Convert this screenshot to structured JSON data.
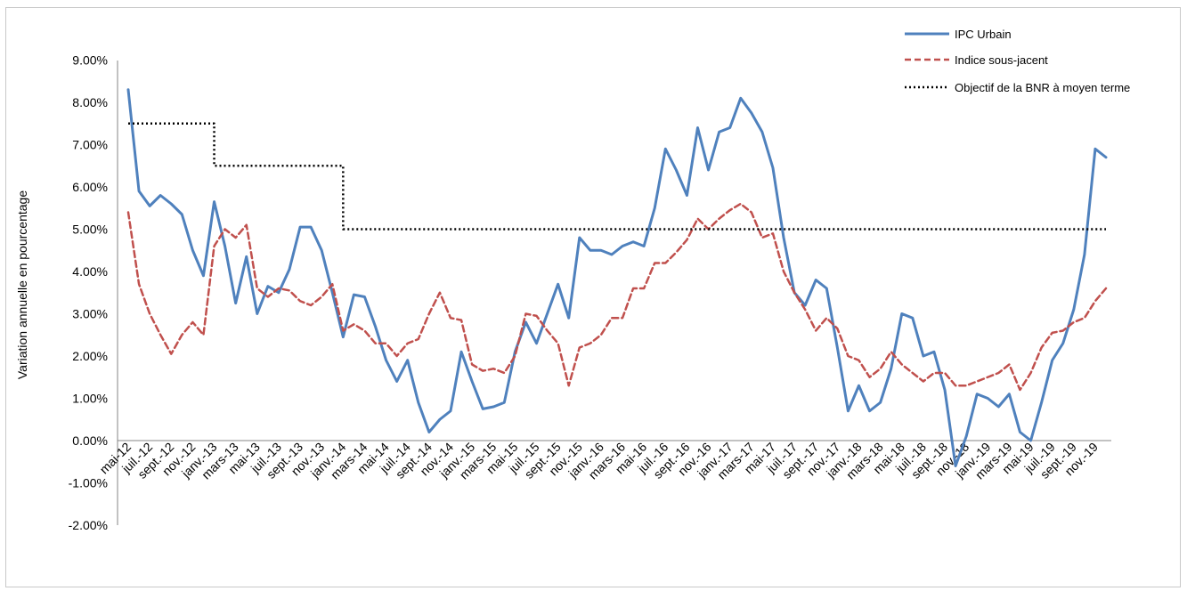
{
  "chart_data": {
    "type": "line",
    "title": "",
    "ylabel": "Variation annuelle en pourcentage",
    "xlabel": "",
    "ylim": [
      -2,
      9
    ],
    "y_ticks": [
      "-2.00%",
      "-1.00%",
      "0.00%",
      "1.00%",
      "2.00%",
      "3.00%",
      "4.00%",
      "5.00%",
      "6.00%",
      "7.00%",
      "8.00%",
      "9.00%"
    ],
    "x_tick_labels": [
      "mai-12",
      "juil.-12",
      "sept.-12",
      "nov.-12",
      "janv.-13",
      "mars-13",
      "mai-13",
      "juil.-13",
      "sept.-13",
      "nov.-13",
      "janv.-14",
      "mars-14",
      "mai-14",
      "juil.-14",
      "sept.-14",
      "nov.-14",
      "janv.-15",
      "mars-15",
      "mai-15",
      "juil.-15",
      "sept.-15",
      "nov.-15",
      "janv.-16",
      "mars-16",
      "mai-16",
      "juil.-16",
      "sept.-16",
      "nov.-16",
      "janv.-17",
      "mars-17",
      "mai-17",
      "juil.-17",
      "sept.-17",
      "nov.-17",
      "janv.-18",
      "mars-18",
      "mai-18",
      "juil.-18",
      "sept.-18",
      "nov.-18",
      "janv.-19",
      "mars-19",
      "mai-19",
      "juil.-19",
      "sept.-19",
      "nov.-19"
    ],
    "legend_position": "top-right",
    "series": [
      {
        "name": "IPC Urbain",
        "color": "#4f81bd",
        "style": "solid",
        "values": [
          8.3,
          5.9,
          5.55,
          5.8,
          5.6,
          5.35,
          4.5,
          3.9,
          5.65,
          4.6,
          3.25,
          4.35,
          3.0,
          3.65,
          3.5,
          4.05,
          5.05,
          5.05,
          4.5,
          3.5,
          2.45,
          3.45,
          3.4,
          2.7,
          1.9,
          1.4,
          1.9,
          0.9,
          0.2,
          0.5,
          0.7,
          2.1,
          1.4,
          0.75,
          0.8,
          0.9,
          2.1,
          2.8,
          2.3,
          3.0,
          3.7,
          2.9,
          4.8,
          4.5,
          4.5,
          4.4,
          4.6,
          4.7,
          4.6,
          5.5,
          6.9,
          6.4,
          5.8,
          7.4,
          6.4,
          7.3,
          7.4,
          8.1,
          7.75,
          7.3,
          6.45,
          4.8,
          3.5,
          3.2,
          3.8,
          3.6,
          2.2,
          0.7,
          1.3,
          0.7,
          0.9,
          1.7,
          3.0,
          2.9,
          2.0,
          2.1,
          1.2,
          -0.6,
          0.1,
          1.1,
          1.0,
          0.8,
          1.1,
          0.2,
          0.0,
          0.9,
          1.9,
          2.3,
          3.1,
          4.4,
          6.9,
          6.7
        ]
      },
      {
        "name": "Indice sous-jacent",
        "color": "#c0504d",
        "style": "dashed",
        "values": [
          5.4,
          3.7,
          3.0,
          2.5,
          2.05,
          2.5,
          2.8,
          2.5,
          4.6,
          5.0,
          4.8,
          5.1,
          3.6,
          3.4,
          3.6,
          3.55,
          3.3,
          3.2,
          3.4,
          3.7,
          2.6,
          2.75,
          2.6,
          2.3,
          2.3,
          2.0,
          2.3,
          2.4,
          3.0,
          3.5,
          2.9,
          2.85,
          1.8,
          1.65,
          1.7,
          1.6,
          2.0,
          3.0,
          2.95,
          2.6,
          2.3,
          1.3,
          2.2,
          2.3,
          2.5,
          2.9,
          2.9,
          3.6,
          3.6,
          4.2,
          4.2,
          4.45,
          4.75,
          5.25,
          5.0,
          5.25,
          5.45,
          5.6,
          5.4,
          4.8,
          4.9,
          4.0,
          3.5,
          3.1,
          2.6,
          2.9,
          2.65,
          2.0,
          1.9,
          1.5,
          1.7,
          2.1,
          1.8,
          1.6,
          1.4,
          1.6,
          1.6,
          1.3,
          1.3,
          1.4,
          1.5,
          1.6,
          1.8,
          1.2,
          1.6,
          2.2,
          2.55,
          2.6,
          2.8,
          2.9,
          3.3,
          3.6
        ]
      },
      {
        "name": "Objectif de la BNR à moyen terme",
        "color": "#000000",
        "style": "dotted",
        "values": [
          7.5,
          7.5,
          7.5,
          7.5,
          7.5,
          7.5,
          7.5,
          7.5,
          6.5,
          6.5,
          6.5,
          6.5,
          6.5,
          6.5,
          6.5,
          6.5,
          6.5,
          6.5,
          6.5,
          6.5,
          5,
          5,
          5,
          5,
          5,
          5,
          5,
          5,
          5,
          5,
          5,
          5,
          5,
          5,
          5,
          5,
          5,
          5,
          5,
          5,
          5,
          5,
          5,
          5,
          5,
          5,
          5,
          5,
          5,
          5,
          5,
          5,
          5,
          5,
          5,
          5,
          5,
          5,
          5,
          5,
          5,
          5,
          5,
          5,
          5,
          5,
          5,
          5,
          5,
          5,
          5,
          5,
          5,
          5,
          5,
          5,
          5,
          5,
          5,
          5,
          5,
          5,
          5,
          5,
          5,
          5,
          5,
          5,
          5,
          5,
          5,
          5
        ]
      }
    ]
  }
}
